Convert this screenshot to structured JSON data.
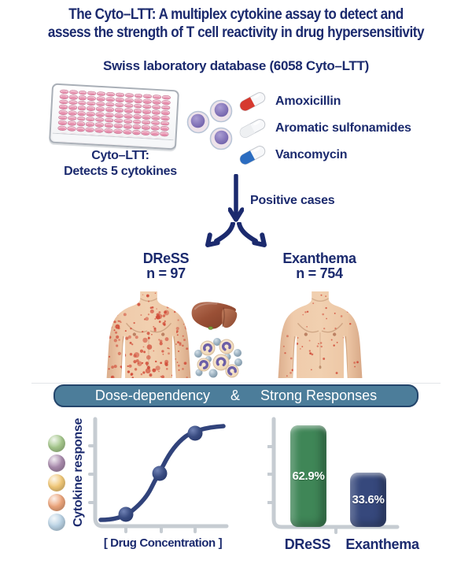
{
  "title": {
    "line1": "The Cyto–LTT: A multiplex cytokine assay to detect and",
    "line2": "assess the strength of T cell reactivity in drug hypersensitivity"
  },
  "subtitle": "Swiss laboratory database (6058 Cyto–LTT)",
  "assay": {
    "plate_caption_line1": "Cyto–LTT:",
    "plate_caption_line2": "Detects 5 cytokines",
    "plate": {
      "rows": 8,
      "cols": 12,
      "well_color": "#e78fad"
    }
  },
  "drugs": [
    {
      "name": "Amoxicillin",
      "capsule_color": "#d63a2f"
    },
    {
      "name": "Aromatic sulfonamides",
      "capsule_color": "#eef0f2"
    },
    {
      "name": "Vancomycin",
      "capsule_color": "#2b6cc0"
    }
  ],
  "flow": {
    "positive_cases_label": "Positive cases",
    "branches": [
      {
        "name": "DReSS",
        "n_label": "n = 97",
        "rash": "dense"
      },
      {
        "name": "Exanthema",
        "n_label": "n = 754",
        "rash": "sparse"
      }
    ]
  },
  "icons": {
    "well_plate": "96-well microplate with pink wells",
    "cells": "three lymphocytes with purple nuclei",
    "capsules": "medication capsules (red/white, white, blue/white)",
    "down_arrow": "navy arrow pointing down",
    "branch_arrows": "navy arrows splitting left and right",
    "liver": "liver organ",
    "eosinophils": "cluster of eosinophils and granulocytes",
    "torso_dense_rash": "male torso with dense red rash (DReSS)",
    "torso_sparse_rash": "male torso with sparse red spots (exanthema)"
  },
  "banner": {
    "part1": "Dose-dependency",
    "separator": "&",
    "part2": "Strong Responses",
    "bg": "#4c7d9a"
  },
  "colors": {
    "navy_text": "#1b2a6e",
    "axis_gray": "#c6ccd2",
    "rash_red": "#d14b38",
    "skin": "#eec9a9"
  },
  "chart_data": [
    {
      "id": "dose-response-curve",
      "type": "line",
      "title": "",
      "xlabel": "[ Drug Concentration ]",
      "ylabel": "Cytokine response",
      "shape": "sigmoid",
      "x_ticks": 3,
      "y_ticks": 3,
      "points_norm": [
        [
          0.27,
          0.1
        ],
        [
          0.53,
          0.46
        ],
        [
          0.79,
          0.86
        ]
      ],
      "curve_color": "#31437b",
      "legend_dot_colors": [
        "#a5c78c",
        "#a98bad",
        "#f1c878",
        "#eca57c",
        "#b9d2e4"
      ],
      "legend_note": "5 cytokines"
    },
    {
      "id": "strong-response-rates",
      "type": "bar",
      "categories": [
        "DReSS",
        "Exanthema"
      ],
      "values": [
        62.9,
        33.6
      ],
      "value_labels": [
        "62.9%",
        "33.6%"
      ],
      "bar_colors": [
        "#3f8657",
        "#36487c"
      ],
      "ylim": [
        0,
        100
      ],
      "xlabel": "",
      "ylabel": ""
    }
  ]
}
